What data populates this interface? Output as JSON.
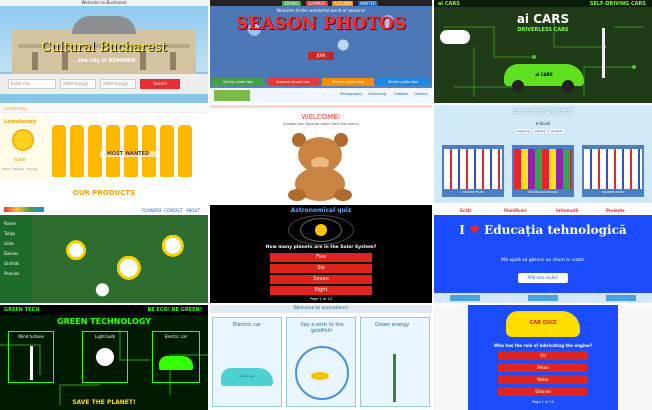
{
  "tile1": {
    "topbar_left": "Welcome",
    "topbar_right": "to Bucharest",
    "title": "Cultural Bucharest",
    "subtitle": "...the city in ROMANIA",
    "search_placeholder": "Enter city",
    "date1": "dd/mm/yyyy",
    "date2": "dd/mm/yyyy",
    "submit": "Search"
  },
  "tile2": {
    "nav": [
      "SPRING",
      "SUMMER",
      "AUTUMN",
      "WINTER"
    ],
    "title": "SEASON PHOTOS",
    "welcome": "Welcome to the wonderful world of seasons!",
    "join_label": "JOIN",
    "tips": [
      "Spring photo tips",
      "Summer photo tips",
      "Autumn photo tips",
      "Winter photo tips"
    ],
    "footer_links": [
      "Photography",
      "Gardening",
      "Hobbies",
      "Flowers",
      "Travel"
    ]
  },
  "tile3": {
    "brand": "ai CARS",
    "tagline": "SELF-DRIVING CARS",
    "title": "ai CARS",
    "subtitle": "DRIVERLESS CARS",
    "car_label": "ai CARS"
  },
  "tile4": {
    "brand": "Lemohoney",
    "side_title": "Lemohoney",
    "juice": "juice",
    "tags": "Taste · Healthy · Energy",
    "most_wanted": "MOST WANTED",
    "products": "OUR PRODUCTS"
  },
  "tile5": {
    "title": "WELCOME!",
    "subtitle": "Choose your favorite game from the menu!"
  },
  "tile6": {
    "title": "Learning System",
    "author": "e-Scioli",
    "tabs": [
      "Learning",
      "Library",
      "Quizzes"
    ],
    "shelves": [
      "COURSE FILES",
      "DOWNLOAD BOOKS",
      "QUIZZES FILES"
    ]
  },
  "tile7": {
    "menu": [
      "FLOWERS",
      "CONTACT",
      "ABOUT"
    ],
    "side_items": [
      "Roses",
      "Tulips",
      "Lilies",
      "Daisies",
      "Orchids",
      "Peonies"
    ]
  },
  "tile8": {
    "title": "Astronomical quiz",
    "question": "How many planets are in the Solar System?",
    "answers": [
      "Five",
      "Six",
      "Seven",
      "Eight"
    ],
    "page": "Page 1 of 10"
  },
  "tile9": {
    "nav": [
      "Ecăți",
      "Planificări",
      "Informatii",
      "Proiecte"
    ],
    "title_pre": "I",
    "title_heart": "♥",
    "title_post": "Educația tehnologică",
    "subtitle": "Mă ajută să găsesc un drum în viață!",
    "button": "Află mai multe!"
  },
  "tile10": {
    "left": "GREEN TECH",
    "right": "BE ECO! BE GREEN!",
    "title": "GREEN TECHNOLOGY",
    "cards": [
      "Wind turbine",
      "Light bulb",
      "Electric car"
    ],
    "bottom": "SAVE THE PLANET!"
  },
  "tile11": {
    "header": "Welcome to animations!",
    "cards": [
      "Electric car",
      "Say a wish to the goldfish!",
      "Green energy"
    ],
    "car_label": "e-running"
  },
  "tile12": {
    "logo": "CAR QUIZ",
    "question": "Who has the role of lubricating the engine?",
    "answers": [
      "Oil",
      "Petrol",
      "Water",
      "Ethanol"
    ],
    "page": "Page 1 of 10"
  },
  "colors": {
    "quiz_red": "#e0241d",
    "green_neon": "#33ff00",
    "blue_bright": "#1b4dff"
  }
}
